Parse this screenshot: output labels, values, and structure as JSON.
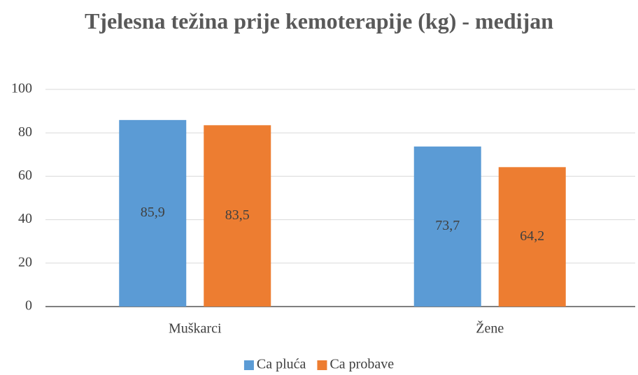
{
  "chart_data": {
    "type": "bar",
    "title": "Tjelesna težina prije kemoterapije (kg) - medijan",
    "categories": [
      "Muškarci",
      "Žene"
    ],
    "series": [
      {
        "name": "Ca pluća",
        "color": "#5b9bd5",
        "values": [
          85.9,
          73.7
        ],
        "value_labels": [
          "85,9",
          "73,7"
        ]
      },
      {
        "name": "Ca probave",
        "color": "#ed7d31",
        "values": [
          83.5,
          64.2
        ],
        "value_labels": [
          "83,5",
          "64,2"
        ]
      }
    ],
    "ylim": [
      0,
      100
    ],
    "yticks": [
      0,
      20,
      40,
      60,
      80,
      100
    ],
    "grid": true,
    "legend": "bottom"
  }
}
